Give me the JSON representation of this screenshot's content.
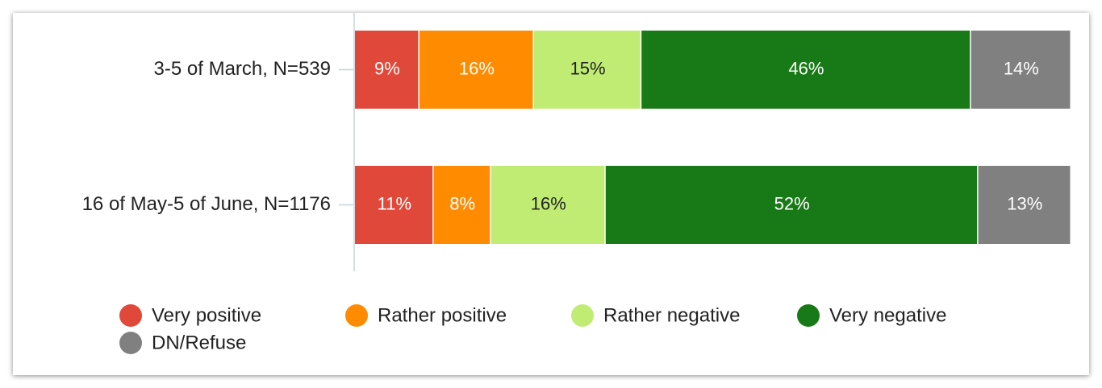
{
  "chart_data": {
    "type": "stacked-bar-horizontal",
    "categories": [
      "3-5 of March, N=539",
      "16 of May-5 of June, N=1176"
    ],
    "xlim": [
      0,
      100
    ],
    "series": [
      {
        "name": "Very positive",
        "color": "#e0493a",
        "values": [
          9,
          11
        ],
        "value_labels": [
          "9%",
          "11%"
        ]
      },
      {
        "name": "Rather positive",
        "color": "#ff8b00",
        "values": [
          16,
          8
        ],
        "value_labels": [
          "16%",
          "8%"
        ]
      },
      {
        "name": "Rather negative",
        "color": "#c1ec74",
        "values": [
          15,
          16
        ],
        "value_labels": [
          "15%",
          "16%"
        ]
      },
      {
        "name": "Very negative",
        "color": "#187a16",
        "values": [
          46,
          52
        ],
        "value_labels": [
          "46%",
          "52%"
        ]
      },
      {
        "name": "DN/Refuse",
        "color": "#808080",
        "values": [
          14,
          13
        ],
        "value_labels": [
          "14%",
          "13%"
        ]
      }
    ],
    "legend": "bottom"
  }
}
